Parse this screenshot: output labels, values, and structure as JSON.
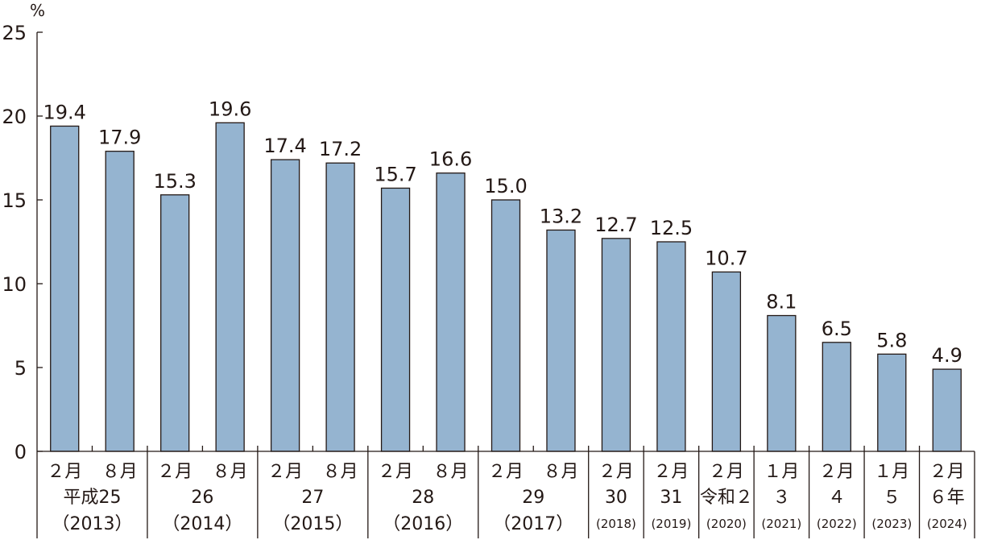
{
  "chart_data": {
    "type": "bar",
    "unit": "%",
    "ylim": [
      0,
      25
    ],
    "yticks": [
      "0",
      "5",
      "10",
      "15",
      "20",
      "25"
    ],
    "grid": false,
    "categories": [
      "2月 平成25（2013）",
      "8月",
      "2月 26（2014）",
      "8月",
      "2月 27（2015）",
      "8月",
      "2月 28（2016）",
      "8月",
      "2月 29（2017）",
      "8月",
      "2月 30（2018）",
      "2月 31（2019）",
      "2月 令和2（2020）",
      "1月 3（2021）",
      "2月 4（2022）",
      "1月 5（2023）",
      "2月 6年（2024）"
    ],
    "values": [
      19.4,
      17.9,
      15.3,
      19.6,
      17.4,
      17.2,
      15.7,
      16.6,
      15.0,
      13.2,
      12.7,
      12.5,
      10.7,
      8.1,
      6.5,
      5.8,
      4.9
    ],
    "value_labels": [
      "19.4",
      "17.9",
      "15.3",
      "19.6",
      "17.4",
      "17.2",
      "15.7",
      "16.6",
      "15.0",
      "13.2",
      "12.7",
      "12.5",
      "10.7",
      "8.1",
      "6.5",
      "5.8",
      "4.9"
    ],
    "months": [
      "２月",
      "８月",
      "２月",
      "８月",
      "２月",
      "８月",
      "２月",
      "８月",
      "２月",
      "８月",
      "２月",
      "２月",
      "２月",
      "１月",
      "２月",
      "１月",
      "２月"
    ],
    "year_groups": [
      {
        "span": 2,
        "era": "平成25",
        "western": "（2013）"
      },
      {
        "span": 2,
        "era": "26",
        "western": "（2014）"
      },
      {
        "span": 2,
        "era": "27",
        "western": "（2015）"
      },
      {
        "span": 2,
        "era": "28",
        "western": "（2016）"
      },
      {
        "span": 2,
        "era": "29",
        "western": "（2017）"
      },
      {
        "span": 1,
        "era": "30",
        "western": "(2018)"
      },
      {
        "span": 1,
        "era": "31",
        "western": "(2019)"
      },
      {
        "span": 1,
        "era": "令和２",
        "western": "(2020)"
      },
      {
        "span": 1,
        "era": "３",
        "western": "(2021)"
      },
      {
        "span": 1,
        "era": "４",
        "western": "(2022)"
      },
      {
        "span": 1,
        "era": "５",
        "western": "(2023)"
      },
      {
        "span": 1,
        "era": "６年",
        "western": "(2024)"
      }
    ],
    "bar_color": "#95b4d0"
  }
}
